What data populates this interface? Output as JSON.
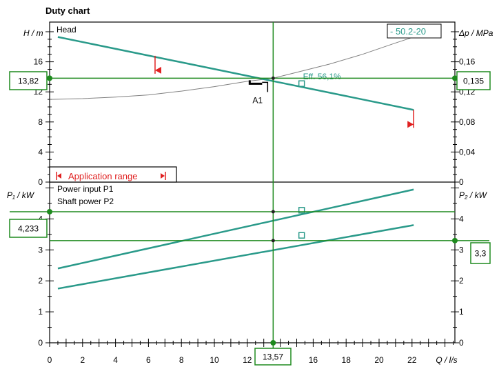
{
  "chart_data": {
    "type": "line",
    "title": "Duty chart",
    "colors": {
      "curve": "#2a9a8a",
      "system": "#808080",
      "duty": "#1e8a1e",
      "range": "#e02020",
      "axis": "#000000"
    },
    "top_panel": {
      "ylabel": "H / m",
      "y2label": "Δp / MPa",
      "ylim": [
        0,
        20
      ],
      "y2lim": [
        0,
        0.2
      ],
      "yticks": [
        "0",
        "4",
        "8",
        "12",
        "16"
      ],
      "y2ticks": [
        "0",
        "0,04",
        "0,08",
        "0,12",
        "0,16"
      ],
      "curve_label": "Head",
      "pump_label": "- 50.2-20",
      "efficiency_label": "Eff.  56,1%",
      "application_range_label": "Application range",
      "operating_point_label": "A1",
      "head_curve": {
        "x": [
          0.5,
          22.1
        ],
        "y": [
          19.3,
          9.6
        ]
      },
      "system_curve": {
        "x": [
          0,
          2,
          4,
          6,
          8,
          10,
          12,
          13.57,
          15,
          17,
          19,
          21,
          23.5
        ],
        "y": [
          11.0,
          11.1,
          11.3,
          11.6,
          12.1,
          12.7,
          13.4,
          13.82,
          14.6,
          15.7,
          17.0,
          18.5,
          20.3
        ]
      },
      "efficiency_point": {
        "x": 15.3,
        "y": 13.1
      },
      "range_markers": [
        {
          "x": 6.4,
          "y": 16.8
        },
        {
          "x": 22.1,
          "y": 9.6
        }
      ],
      "h_value": "13,82",
      "dp_value": "0,135",
      "h_duty": 13.82
    },
    "bottom_panel": {
      "ylabel": "P₁ / kW",
      "y2label": "P₂ / kW",
      "ylim": [
        0,
        5.8
      ],
      "yticks": [
        "0",
        "1",
        "2",
        "3",
        "4"
      ],
      "y2ticks": [
        "0",
        "1",
        "2",
        "3",
        "4"
      ],
      "legend": [
        "Power input P1",
        "Shaft power P2"
      ],
      "series": [
        {
          "name": "Power input P1",
          "x": [
            0.5,
            22.1
          ],
          "y": [
            2.4,
            4.95
          ]
        },
        {
          "name": "Shaft power P2",
          "x": [
            0.5,
            22.1
          ],
          "y": [
            1.75,
            3.8
          ]
        }
      ],
      "p1_marker": {
        "x": 15.3,
        "y": 4.28
      },
      "p2_marker": {
        "x": 15.3,
        "y": 3.47
      },
      "p1_value": "4,233",
      "p2_value": "3,3",
      "p1_duty": 4.233,
      "p2_duty": 3.3
    },
    "x_axis": {
      "xlabel": "Q / l/s",
      "xlim": [
        0,
        24
      ],
      "xticks": [
        "0",
        "2",
        "4",
        "6",
        "8",
        "10",
        "12",
        "14",
        "16",
        "18",
        "20",
        "22"
      ],
      "q_value": "13,57",
      "q_duty": 13.57
    }
  }
}
